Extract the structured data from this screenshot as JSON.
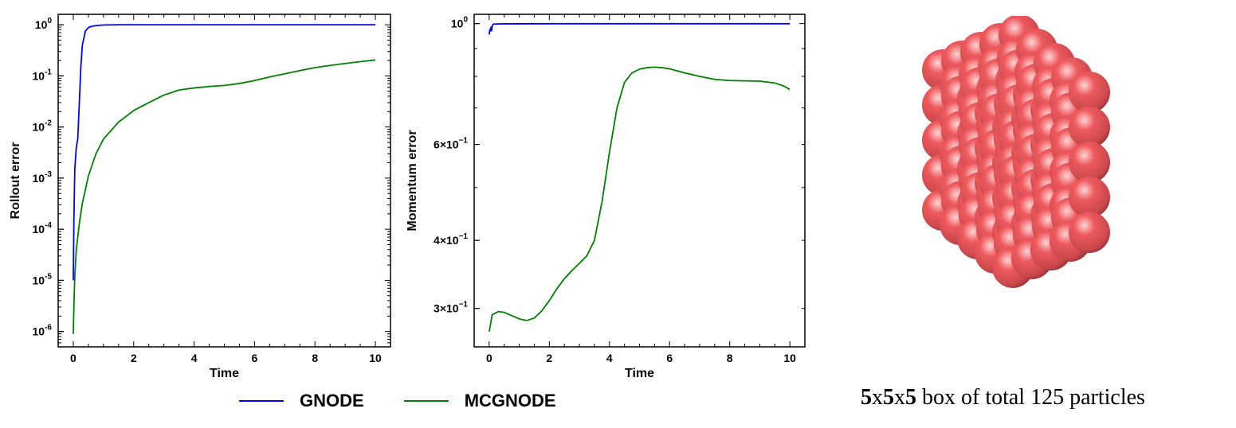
{
  "chart_data": [
    {
      "type": "line",
      "ylabel": "Rollout error",
      "xlabel": "Time",
      "yscale": "log",
      "xlim": [
        -0.5,
        10.5
      ],
      "ylim": [
        5e-07,
        1.6
      ],
      "xticks": [
        0,
        2,
        4,
        6,
        8,
        10
      ],
      "yticks": [
        {
          "value": 1e-06,
          "base": "10",
          "exp": "-6"
        },
        {
          "value": 1e-05,
          "base": "10",
          "exp": "-5"
        },
        {
          "value": 0.0001,
          "base": "10",
          "exp": "-4"
        },
        {
          "value": 0.001,
          "base": "10",
          "exp": "-3"
        },
        {
          "value": 0.01,
          "base": "10",
          "exp": "-2"
        },
        {
          "value": 0.1,
          "base": "10",
          "exp": "-1"
        },
        {
          "value": 1,
          "base": "10",
          "exp": "0"
        }
      ],
      "series": [
        {
          "name": "GNODE",
          "color": "#0000ff",
          "x": [
            0,
            0.02,
            0.05,
            0.1,
            0.15,
            0.2,
            0.25,
            0.3,
            0.4,
            0.5,
            0.6,
            0.8,
            1.0,
            1.5,
            2,
            4,
            6,
            8,
            10
          ],
          "y": [
            1e-05,
            0.00015,
            0.0015,
            0.004,
            0.006,
            0.03,
            0.15,
            0.4,
            0.75,
            0.88,
            0.93,
            0.97,
            0.99,
            1.0,
            1.0,
            1.0,
            1.0,
            1.0,
            1.0
          ]
        },
        {
          "name": "MCGNODE",
          "color": "#008000",
          "x": [
            0,
            0.02,
            0.05,
            0.1,
            0.2,
            0.3,
            0.5,
            0.75,
            1.0,
            1.5,
            2,
            2.5,
            3,
            3.5,
            4,
            4.5,
            5,
            5.5,
            6,
            6.5,
            7,
            7.5,
            8,
            8.5,
            9,
            9.5,
            10
          ],
          "y": [
            9e-07,
            3e-06,
            1.2e-05,
            4e-05,
            0.00013,
            0.00032,
            0.0011,
            0.003,
            0.0058,
            0.0125,
            0.021,
            0.03,
            0.042,
            0.053,
            0.058,
            0.062,
            0.065,
            0.071,
            0.081,
            0.095,
            0.11,
            0.127,
            0.145,
            0.16,
            0.175,
            0.19,
            0.205
          ]
        }
      ]
    },
    {
      "type": "line",
      "ylabel": "Momentum error",
      "xlabel": "Time",
      "yscale": "log",
      "xlim": [
        -0.5,
        10.5
      ],
      "ylim": [
        0.255,
        1.04
      ],
      "xticks": [
        0,
        2,
        4,
        6,
        8,
        10
      ],
      "yticks": [
        {
          "value": 0.3,
          "label": "3×10",
          "exp": "−1"
        },
        {
          "value": 0.4,
          "label": "4×10",
          "exp": "−1"
        },
        {
          "value": 0.6,
          "label": "6×10",
          "exp": "−1"
        },
        {
          "value": 1.0,
          "label": "10",
          "exp": "0"
        }
      ],
      "series": [
        {
          "name": "GNODE",
          "color": "#0000ff",
          "x": [
            0,
            0.02,
            0.04,
            0.06,
            0.08,
            0.1,
            0.12,
            0.14,
            0.2,
            0.5,
            1,
            2,
            4,
            6,
            8,
            10
          ],
          "y": [
            0.955,
            0.975,
            0.97,
            0.985,
            0.97,
            0.99,
            0.995,
            0.998,
            0.998,
            0.999,
            0.999,
            0.9995,
            0.9995,
            0.9995,
            0.9995,
            0.9995
          ]
        },
        {
          "name": "MCGNODE",
          "color": "#008000",
          "x": [
            0,
            0.1,
            0.3,
            0.5,
            0.75,
            1.0,
            1.25,
            1.5,
            1.75,
            2.0,
            2.25,
            2.5,
            2.75,
            3.0,
            3.25,
            3.5,
            3.75,
            4.0,
            4.25,
            4.5,
            4.75,
            5.0,
            5.25,
            5.5,
            5.75,
            6.0,
            6.5,
            7.0,
            7.5,
            8.0,
            8.5,
            9.0,
            9.5,
            9.8,
            10
          ],
          "y": [
            0.272,
            0.292,
            0.296,
            0.295,
            0.291,
            0.287,
            0.285,
            0.288,
            0.297,
            0.31,
            0.326,
            0.34,
            0.352,
            0.363,
            0.375,
            0.4,
            0.47,
            0.58,
            0.7,
            0.78,
            0.812,
            0.825,
            0.83,
            0.832,
            0.83,
            0.826,
            0.812,
            0.8,
            0.79,
            0.786,
            0.785,
            0.784,
            0.778,
            0.768,
            0.757
          ]
        }
      ]
    }
  ],
  "legend": [
    {
      "label": "GNODE",
      "color": "#0000ff"
    },
    {
      "label": "MCGNODE",
      "color": "#008000"
    }
  ],
  "particle_box": {
    "color": "#ee5a5e",
    "caption_bold_1": "5",
    "caption_x1": "x",
    "caption_bold_2": "5",
    "caption_x2": "x",
    "caption_bold_3": "5",
    "caption_rest": " box of total 125 particles"
  }
}
